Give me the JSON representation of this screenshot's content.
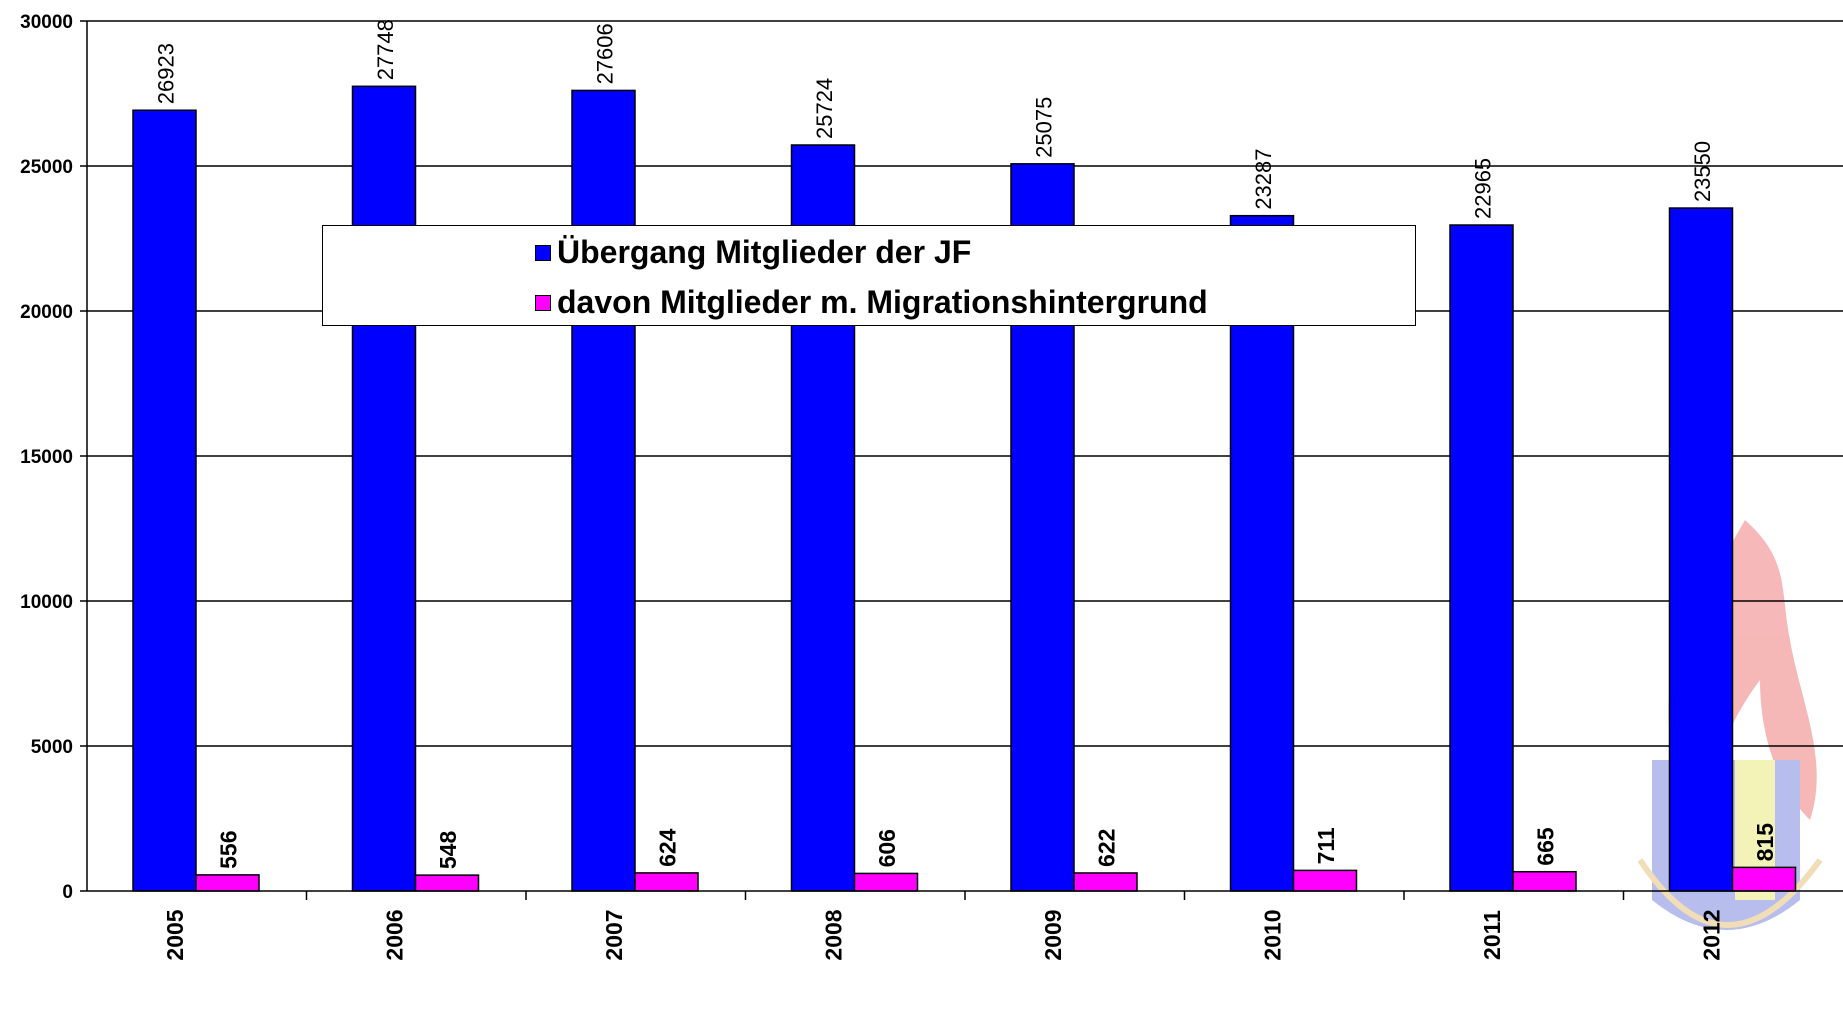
{
  "chart_data": {
    "type": "bar",
    "categories": [
      "2005",
      "2006",
      "2007",
      "2008",
      "2009",
      "2010",
      "2011",
      "2012"
    ],
    "series": [
      {
        "name": "Übergang Mitglieder der JF",
        "color": "#0000ff",
        "values": [
          26923,
          27748,
          27606,
          25724,
          25075,
          23287,
          22965,
          23550
        ]
      },
      {
        "name": "davon Mitglieder m. Migrationshintergrund",
        "color": "#ff00ff",
        "values": [
          556,
          548,
          624,
          606,
          622,
          711,
          665,
          815
        ]
      }
    ],
    "yticks": [
      0,
      5000,
      10000,
      15000,
      20000,
      25000,
      30000
    ],
    "ylim": [
      0,
      30000
    ],
    "grid": true,
    "legend": "upper-center",
    "title": "",
    "xlabel": "",
    "ylabel": ""
  }
}
